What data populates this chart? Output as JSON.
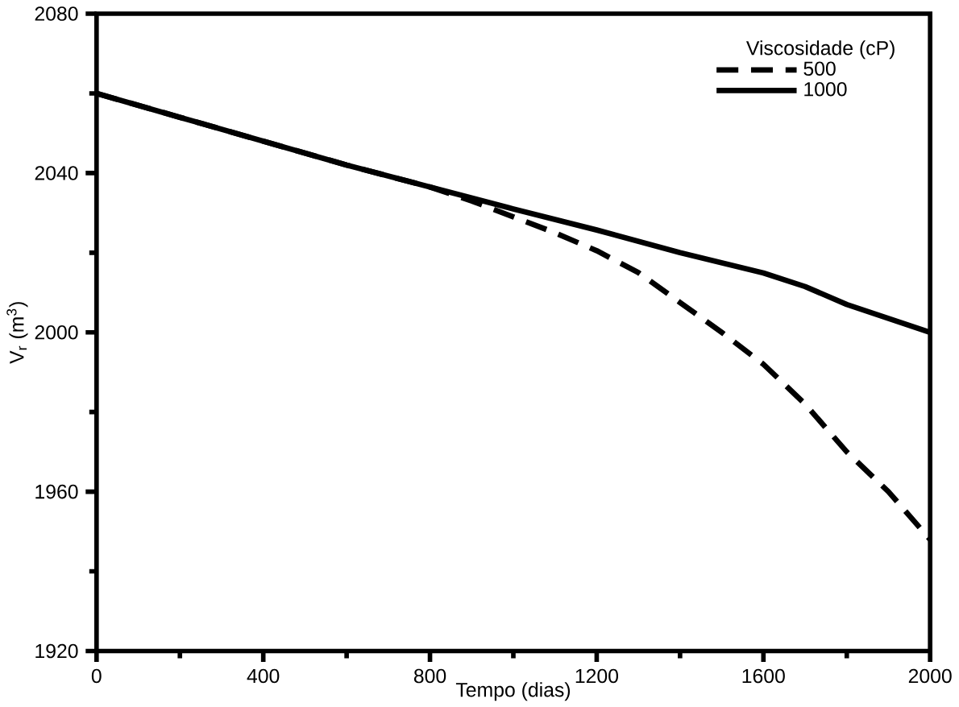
{
  "chart_data": {
    "type": "line",
    "xlabel": "Tempo (dias)",
    "ylabel": "V$_{r}$ (m$^{3}$)",
    "legend_title": "Viscosidade (cP)",
    "legend": "top right",
    "xlim": [
      0,
      2000
    ],
    "ylim": [
      1920,
      2080
    ],
    "xticks": [
      0,
      400,
      800,
      1200,
      1600,
      2000
    ],
    "yticks": [
      1920,
      1960,
      2000,
      2040,
      2080
    ],
    "series": [
      {
        "name": "500",
        "color": "#000000",
        "line_style": "dashed",
        "x": [
          0,
          200,
          400,
          600,
          800,
          900,
          1000,
          1100,
          1200,
          1300,
          1400,
          1500,
          1600,
          1700,
          1800,
          1900,
          2000
        ],
        "values": [
          2060,
          2054,
          2048,
          2042,
          2036.5,
          2033,
          2029,
          2025,
          2020.5,
          2015,
          2007.5,
          2000,
          1992,
          1982,
          1970,
          1960,
          1948
        ]
      },
      {
        "name": "1000",
        "color": "#000000",
        "line_style": "solid",
        "x": [
          0,
          200,
          400,
          600,
          800,
          1000,
          1200,
          1400,
          1600,
          1700,
          1800,
          2000
        ],
        "values": [
          2060,
          2054,
          2048,
          2042,
          2036.5,
          2031,
          2025.7,
          2020,
          2014.9,
          2011.5,
          2007,
          2000
        ]
      }
    ]
  }
}
